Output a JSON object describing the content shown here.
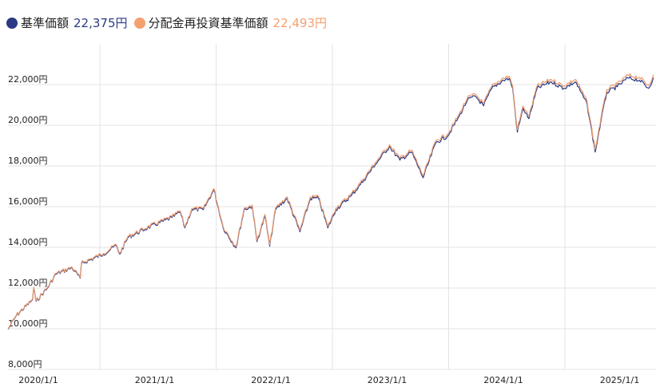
{
  "legend": [
    {
      "name": "基準価額",
      "value": "22,375円",
      "color": "#2b3a85"
    },
    {
      "name": "分配金再投資基準価額",
      "value": "22,493円",
      "color": "#f4a06f"
    }
  ],
  "chart_data": {
    "type": "line",
    "title": "",
    "xlabel": "",
    "ylabel": "",
    "ylim": [
      8000,
      23500
    ],
    "grid": true,
    "legend_position": "top-left",
    "y_ticks": [
      8000,
      10000,
      12000,
      14000,
      16000,
      18000,
      20000,
      22000
    ],
    "y_tick_labels": [
      "8,000円",
      "10,000円",
      "12,000円",
      "14,000円",
      "16,000円",
      "18,000円",
      "20,000円",
      "22,000円"
    ],
    "x_ticks": [
      2020,
      2021,
      2022,
      2023,
      2024,
      2025
    ],
    "x_tick_labels": [
      "2020/1/1",
      "2021/1/1",
      "2022/1/1",
      "2023/1/1",
      "2024/1/1",
      "2025/1/1"
    ],
    "x_unit": "decimal year",
    "x": [
      2019.74,
      2019.81,
      2019.95,
      2019.96,
      2019.98,
      2020.08,
      2020.15,
      2020.29,
      2020.36,
      2020.37,
      2020.56,
      2020.67,
      2020.7,
      2020.77,
      2020.94,
      2021.15,
      2021.22,
      2021.26,
      2021.32,
      2021.42,
      2021.51,
      2021.59,
      2021.7,
      2021.77,
      2021.84,
      2021.88,
      2021.95,
      2021.99,
      2022.04,
      2022.14,
      2022.25,
      2022.34,
      2022.41,
      2022.49,
      2022.56,
      2022.69,
      2022.8,
      2022.9,
      2023.02,
      2023.11,
      2023.21,
      2023.31,
      2023.42,
      2023.52,
      2023.62,
      2023.69,
      2023.76,
      2023.83,
      2023.9,
      2024.0,
      2024.05,
      2024.08,
      2024.12,
      2024.17,
      2024.22,
      2024.29,
      2024.41,
      2024.52,
      2024.62,
      2024.72,
      2024.79,
      2024.84,
      2024.89,
      2024.98,
      2025.07,
      2025.17,
      2025.25,
      2025.29
    ],
    "series": [
      {
        "name": "基準価額",
        "color": "#2b3a85",
        "values": [
          10000,
          10670,
          11450,
          12040,
          11370,
          12040,
          12710,
          13020,
          12510,
          13220,
          13690,
          14120,
          13690,
          14510,
          14980,
          15490,
          15770,
          14980,
          15880,
          15880,
          16860,
          14980,
          14000,
          15880,
          16040,
          14310,
          15570,
          14080,
          15880,
          16430,
          14790,
          16430,
          16430,
          14980,
          15880,
          16550,
          17330,
          18120,
          18980,
          18310,
          18710,
          17450,
          19180,
          19490,
          20470,
          21260,
          21450,
          20980,
          21840,
          22240,
          22320,
          21840,
          19690,
          20860,
          20350,
          21840,
          22160,
          21840,
          22160,
          21060,
          18710,
          20280,
          21650,
          21920,
          22350,
          22240,
          21840,
          22375
        ]
      },
      {
        "name": "分配金再投資基準価額",
        "color": "#ec9a6e",
        "values": [
          10000,
          10672,
          11454,
          12045,
          11377,
          12049,
          12721,
          13032,
          12524,
          13236,
          13708,
          14139,
          13711,
          14533,
          15005,
          15516,
          15798,
          15010,
          15912,
          15913,
          16895,
          15017,
          14039,
          15920,
          16082,
          14354,
          15616,
          14127,
          15929,
          16481,
          14843,
          16484,
          16486,
          15038,
          15940,
          16611,
          17393,
          18185,
          19047,
          18378,
          18780,
          17522,
          19254,
          19565,
          20547,
          21339,
          21531,
          21062,
          21924,
          22326,
          22408,
          21929,
          19781,
          20953,
          20445,
          21936,
          22258,
          21940,
          22262,
          21163,
          18815,
          20387,
          21759,
          22030,
          22462,
          22354,
          21956,
          22493
        ]
      }
    ]
  }
}
